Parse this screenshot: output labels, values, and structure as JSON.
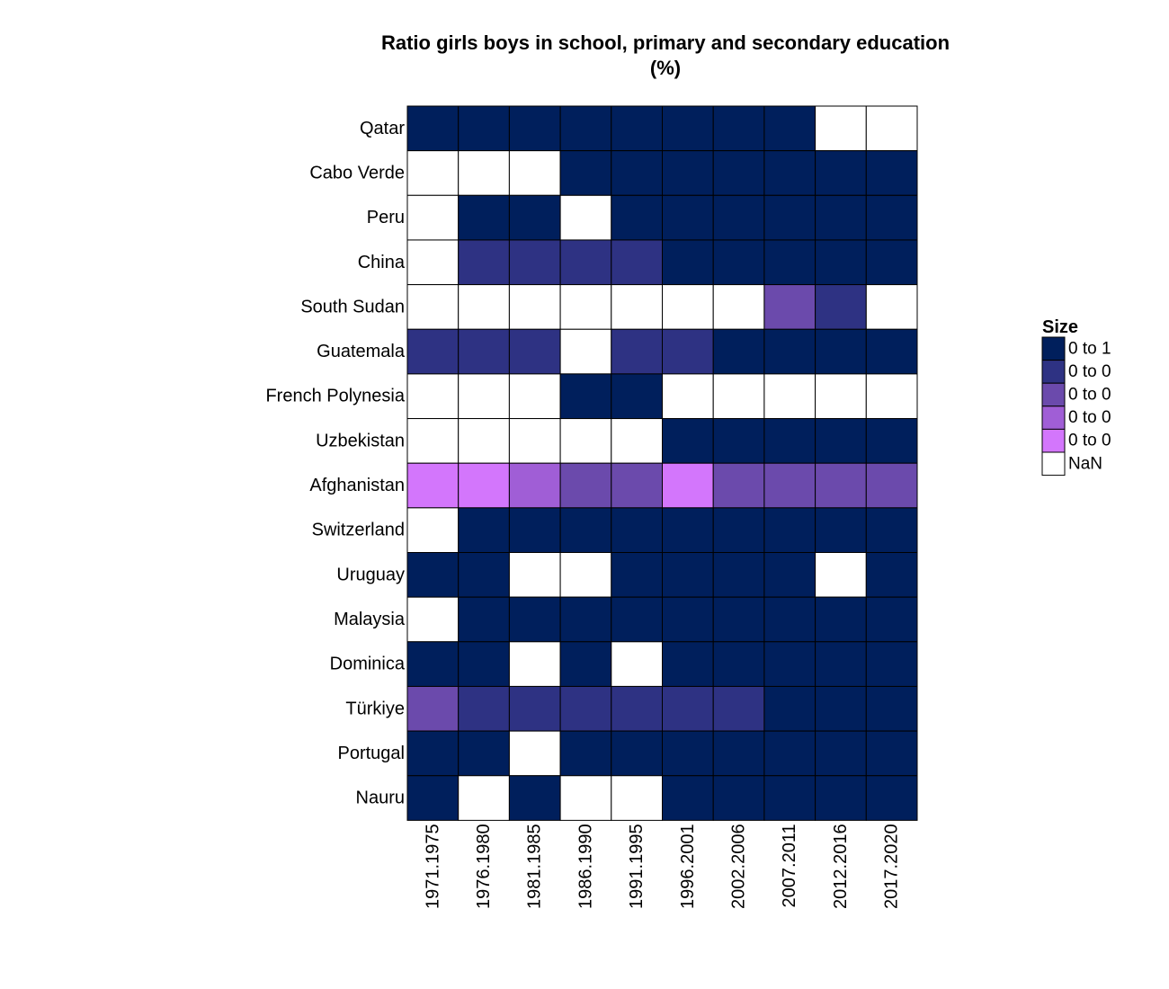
{
  "chart_data": {
    "type": "heatmap",
    "title": "Ratio girls boys in school, primary and secondary education",
    "subtitle": "(%)",
    "xlabel": "",
    "ylabel": "",
    "x_categories": [
      "1971.1975",
      "1976.1980",
      "1981.1985",
      "1986.1990",
      "1991.1995",
      "1996.2001",
      "2002.2006",
      "2007.2011",
      "2012.2016",
      "2017.2020"
    ],
    "y_categories": [
      "Qatar",
      "Cabo Verde",
      "Peru",
      "China",
      "South Sudan",
      "Guatemala",
      "French Polynesia",
      "Uzbekistan",
      "Afghanistan",
      "Switzerland",
      "Uruguay",
      "Malaysia",
      "Dominica",
      "Türkiye",
      "Portugal",
      "Nauru"
    ],
    "legend": {
      "title": "Size",
      "placement": "right",
      "bins": [
        {
          "label": "0 to 1",
          "color": "#001f5c"
        },
        {
          "label": "0 to 0",
          "color": "#2e3283"
        },
        {
          "label": "0 to 0",
          "color": "#6b4aac"
        },
        {
          "label": "0 to 0",
          "color": "#a05ed6"
        },
        {
          "label": "0 to 0",
          "color": "#d376fc"
        },
        {
          "label": "NaN",
          "color": "#ffffff"
        }
      ]
    },
    "bin_index_grid": [
      [
        0,
        0,
        0,
        0,
        0,
        0,
        0,
        0,
        5,
        5
      ],
      [
        5,
        5,
        5,
        0,
        0,
        0,
        0,
        0,
        0,
        0
      ],
      [
        5,
        0,
        0,
        5,
        0,
        0,
        0,
        0,
        0,
        0
      ],
      [
        5,
        1,
        1,
        1,
        1,
        0,
        0,
        0,
        0,
        0
      ],
      [
        5,
        5,
        5,
        5,
        5,
        5,
        5,
        2,
        1,
        5
      ],
      [
        1,
        1,
        1,
        5,
        1,
        1,
        0,
        0,
        0,
        0
      ],
      [
        5,
        5,
        5,
        0,
        0,
        5,
        5,
        5,
        5,
        5
      ],
      [
        5,
        5,
        5,
        5,
        5,
        0,
        0,
        0,
        0,
        0
      ],
      [
        4,
        4,
        3,
        2,
        2,
        4,
        2,
        2,
        2,
        2
      ],
      [
        5,
        0,
        0,
        0,
        0,
        0,
        0,
        0,
        0,
        0
      ],
      [
        0,
        0,
        5,
        5,
        0,
        0,
        0,
        0,
        5,
        0
      ],
      [
        5,
        0,
        0,
        0,
        0,
        0,
        0,
        0,
        0,
        0
      ],
      [
        0,
        0,
        5,
        0,
        5,
        0,
        0,
        0,
        0,
        0
      ],
      [
        2,
        1,
        1,
        1,
        1,
        1,
        1,
        0,
        0,
        0
      ],
      [
        0,
        0,
        5,
        0,
        0,
        0,
        0,
        0,
        0,
        0
      ],
      [
        0,
        5,
        0,
        5,
        5,
        0,
        0,
        0,
        0,
        0
      ]
    ],
    "grid": false
  }
}
